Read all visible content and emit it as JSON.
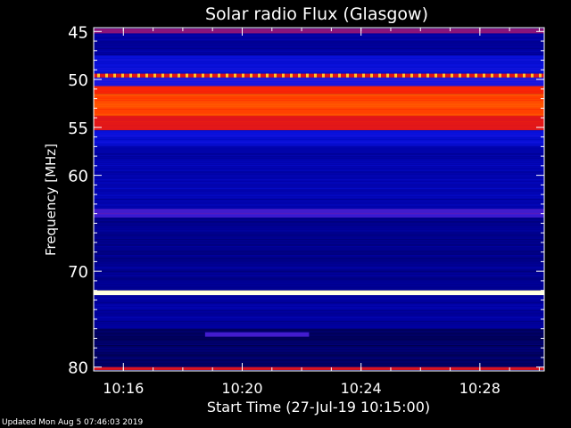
{
  "chart_data": {
    "type": "heatmap",
    "title": "Solar radio Flux (Glasgow)",
    "xlabel": "Start Time (27-Jul-19 10:15:00)",
    "ylabel": "Frequency [MHz]",
    "x_unit": "minutes",
    "xlim": [
      "10:15:00",
      "10:30:10"
    ],
    "ylim": [
      80.4,
      44.6
    ],
    "y_ticks": [
      45,
      50,
      55,
      60,
      70,
      80
    ],
    "x_ticks": [
      "10:16",
      "10:20",
      "10:24",
      "10:28"
    ],
    "colormap": "dark blue → blue → purple → red → orange → yellow → white",
    "grid": false,
    "features": [
      {
        "freq_from": 44.7,
        "freq_to": 45.2,
        "level": 0.45,
        "description": "band edge"
      },
      {
        "freq_from": 45.2,
        "freq_to": 47.5,
        "level": 0.12
      },
      {
        "freq_from": 47.5,
        "freq_to": 49.4,
        "level": 0.2
      },
      {
        "freq_from": 49.4,
        "freq_to": 49.8,
        "level": 0.6,
        "dashed": true
      },
      {
        "freq_from": 49.8,
        "freq_to": 50.7,
        "level": 0.25
      },
      {
        "freq_from": 50.7,
        "freq_to": 51.5,
        "level": 0.72
      },
      {
        "freq_from": 51.5,
        "freq_to": 53.8,
        "level": 0.78
      },
      {
        "freq_from": 53.8,
        "freq_to": 55.3,
        "level": 0.62
      },
      {
        "freq_from": 55.3,
        "freq_to": 57.0,
        "level": 0.2
      },
      {
        "freq_from": 57.0,
        "freq_to": 63.5,
        "level": 0.14
      },
      {
        "freq_from": 63.5,
        "freq_to": 64.4,
        "level": 0.3,
        "description": "purple line"
      },
      {
        "freq_from": 64.4,
        "freq_to": 72.0,
        "level": 0.1
      },
      {
        "freq_from": 72.0,
        "freq_to": 72.5,
        "level": 1.0,
        "description": "bright interference line"
      },
      {
        "freq_from": 72.5,
        "freq_to": 76.0,
        "level": 0.12
      },
      {
        "freq_from": 76.0,
        "freq_to": 80.0,
        "level": 0.05
      },
      {
        "freq_from": 80.0,
        "freq_to": 80.3,
        "level": 0.6
      }
    ],
    "events": [
      {
        "type": "short bar",
        "freq": 76.6,
        "time_from": "10:18:45",
        "time_to": "10:22:15",
        "level": 0.3
      }
    ]
  },
  "footer": "Updated Mon Aug  5 07:46:03 2019"
}
